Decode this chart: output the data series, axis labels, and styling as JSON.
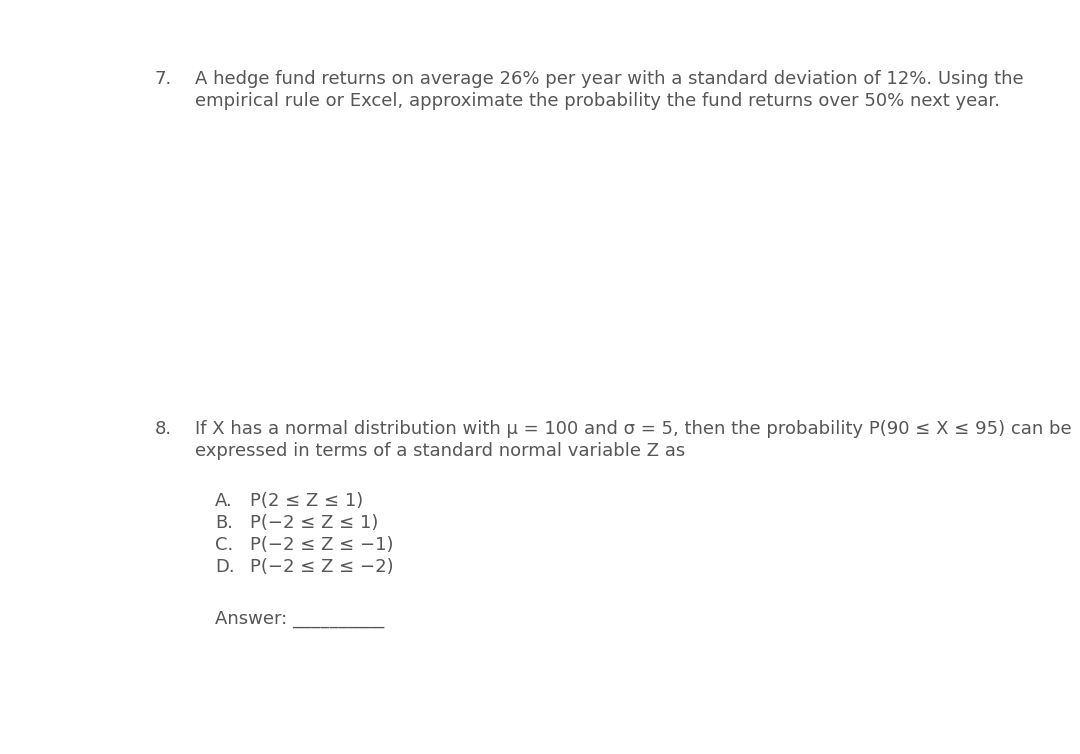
{
  "background_color": "#ffffff",
  "text_color": "#565656",
  "font_size": 13.0,
  "q7_number": "7.",
  "q7_line1": "A hedge fund returns on average 26% per year with a standard deviation of 12%. Using the",
  "q7_line2": "empirical rule or Excel, approximate the probability the fund returns over 50% next year.",
  "q8_number": "8.",
  "q8_line1": "If X has a normal distribution with μ = 100 and σ = 5, then the probability P(90 ≤ X ≤ 95) can be",
  "q8_line2": "expressed in terms of a standard normal variable Z as",
  "opt_A_label": "A.",
  "opt_A_text": "P(2 ≤ Z ≤ 1)",
  "opt_B_label": "B.",
  "opt_B_text": "P(−2 ≤ Z ≤ 1)",
  "opt_C_label": "C.",
  "opt_C_text": "P(−2 ≤ Z ≤ −1)",
  "opt_D_label": "D.",
  "opt_D_text": "P(−2 ≤ Z ≤ −2)",
  "answer_label": "Answer: __________",
  "fig_width": 10.8,
  "fig_height": 7.54,
  "dpi": 100
}
